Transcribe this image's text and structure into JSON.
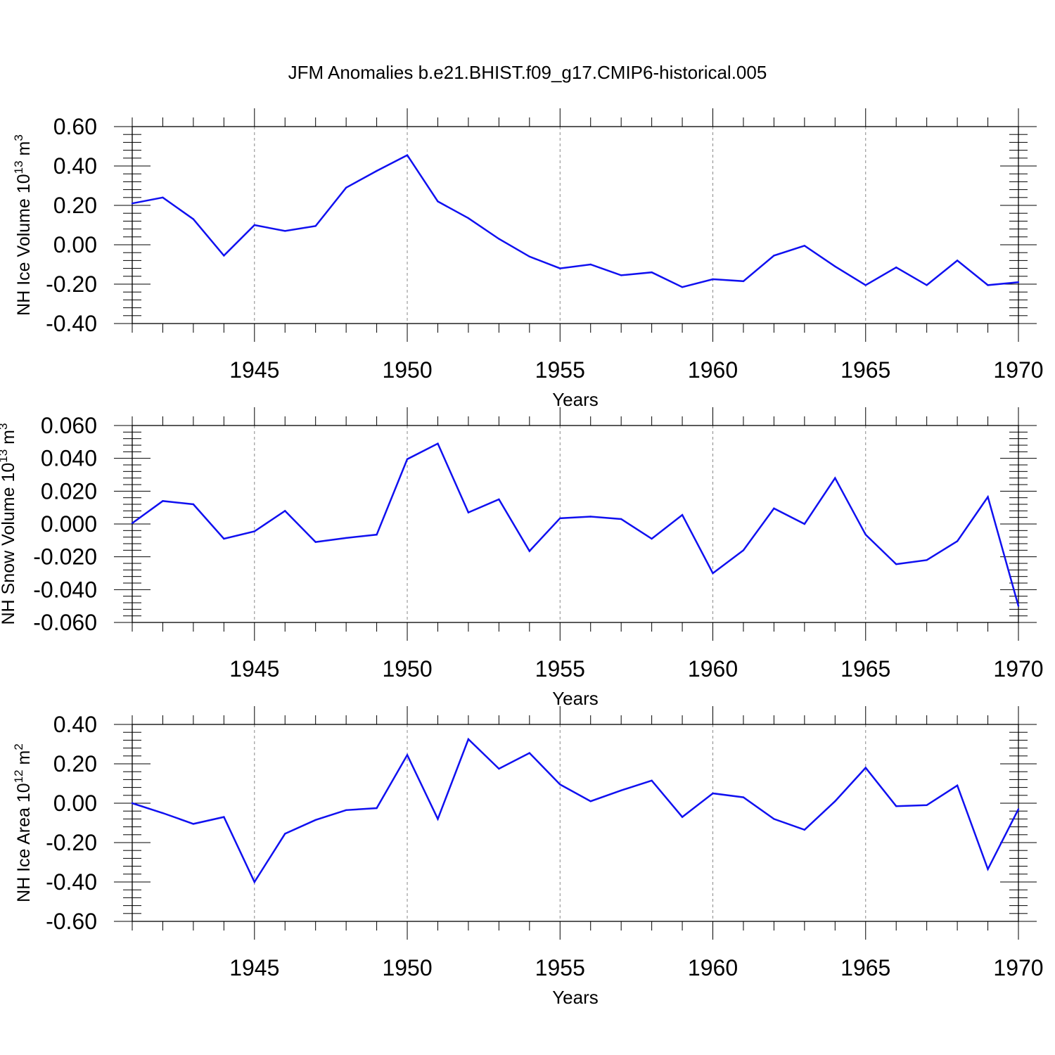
{
  "title": "JFM Anomalies b.e21.BHIST.f09_g17.CMIP6-historical.005",
  "line_color": "#1010f0",
  "chart_data": [
    {
      "type": "line",
      "ylabel_main": "NH Ice Volume 10",
      "ylabel_sup": "13",
      "ylabel_unit": " m",
      "ylabel_unit_sup": "3",
      "xlabel": "Years",
      "xlim": [
        1941,
        1970
      ],
      "ylim": [
        -0.4,
        0.6
      ],
      "yticks": [
        -0.4,
        -0.2,
        0.0,
        0.2,
        0.4,
        0.6
      ],
      "yticklabels": [
        "-0.40",
        "-0.20",
        "0.00",
        "0.20",
        "0.40",
        "0.60"
      ],
      "xticks": [
        1945,
        1950,
        1955,
        1960,
        1965,
        1970
      ],
      "xticklabels": [
        "1945",
        "1950",
        "1955",
        "1960",
        "1965",
        "1970"
      ],
      "x": [
        1941,
        1942,
        1943,
        1944,
        1945,
        1946,
        1947,
        1948,
        1949,
        1950,
        1951,
        1952,
        1953,
        1954,
        1955,
        1956,
        1957,
        1958,
        1959,
        1960,
        1961,
        1962,
        1963,
        1964,
        1965,
        1966,
        1967,
        1968,
        1969,
        1970
      ],
      "values": [
        0.21,
        0.24,
        0.13,
        -0.055,
        0.1,
        0.07,
        0.095,
        0.29,
        0.375,
        0.455,
        0.22,
        0.135,
        0.03,
        -0.06,
        -0.12,
        -0.1,
        -0.155,
        -0.14,
        -0.215,
        -0.175,
        -0.185,
        -0.055,
        -0.005,
        -0.11,
        -0.205,
        -0.115,
        -0.205,
        -0.08,
        -0.205,
        -0.19
      ]
    },
    {
      "type": "line",
      "ylabel_main": "NH Snow Volume 10",
      "ylabel_sup": "13",
      "ylabel_unit": " m",
      "ylabel_unit_sup": "3",
      "xlabel": "Years",
      "xlim": [
        1941,
        1970
      ],
      "ylim": [
        -0.06,
        0.06
      ],
      "yticks": [
        -0.06,
        -0.04,
        -0.02,
        0.0,
        0.02,
        0.04,
        0.06
      ],
      "yticklabels": [
        "-0.060",
        "-0.040",
        "-0.020",
        "0.000",
        "0.020",
        "0.040",
        "0.060"
      ],
      "xticks": [
        1945,
        1950,
        1955,
        1960,
        1965,
        1970
      ],
      "xticklabels": [
        "1945",
        "1950",
        "1955",
        "1960",
        "1965",
        "1970"
      ],
      "x": [
        1941,
        1942,
        1943,
        1944,
        1945,
        1946,
        1947,
        1948,
        1949,
        1950,
        1951,
        1952,
        1953,
        1954,
        1955,
        1956,
        1957,
        1958,
        1959,
        1960,
        1961,
        1962,
        1963,
        1964,
        1965,
        1966,
        1967,
        1968,
        1969,
        1970
      ],
      "values": [
        0.0005,
        0.014,
        0.012,
        -0.009,
        -0.0045,
        0.008,
        -0.011,
        -0.0085,
        -0.0065,
        0.0395,
        0.049,
        0.007,
        0.015,
        -0.0165,
        0.0035,
        0.0045,
        0.003,
        -0.009,
        0.0055,
        -0.03,
        -0.016,
        0.0095,
        0.0,
        0.028,
        -0.0065,
        -0.0245,
        -0.022,
        -0.0105,
        0.0165,
        -0.05
      ]
    },
    {
      "type": "line",
      "ylabel_main": "NH Ice Area 10",
      "ylabel_sup": "12",
      "ylabel_unit": " m",
      "ylabel_unit_sup": "2",
      "xlabel": "Years",
      "xlim": [
        1941,
        1970
      ],
      "ylim": [
        -0.6,
        0.4
      ],
      "yticks": [
        -0.6,
        -0.4,
        -0.2,
        0.0,
        0.2,
        0.4
      ],
      "yticklabels": [
        "-0.60",
        "-0.40",
        "-0.20",
        "0.00",
        "0.20",
        "0.40"
      ],
      "xticks": [
        1945,
        1950,
        1955,
        1960,
        1965,
        1970
      ],
      "xticklabels": [
        "1945",
        "1950",
        "1955",
        "1960",
        "1965",
        "1970"
      ],
      "x": [
        1941,
        1942,
        1943,
        1944,
        1945,
        1946,
        1947,
        1948,
        1949,
        1950,
        1951,
        1952,
        1953,
        1954,
        1955,
        1956,
        1957,
        1958,
        1959,
        1960,
        1961,
        1962,
        1963,
        1964,
        1965,
        1966,
        1967,
        1968,
        1969,
        1970
      ],
      "values": [
        0.0,
        -0.05,
        -0.105,
        -0.07,
        -0.4,
        -0.155,
        -0.085,
        -0.035,
        -0.025,
        0.245,
        -0.08,
        0.325,
        0.175,
        0.255,
        0.095,
        0.01,
        0.065,
        0.115,
        -0.07,
        0.05,
        0.03,
        -0.08,
        -0.135,
        0.01,
        0.18,
        -0.015,
        -0.01,
        0.09,
        -0.335,
        -0.03
      ]
    }
  ]
}
